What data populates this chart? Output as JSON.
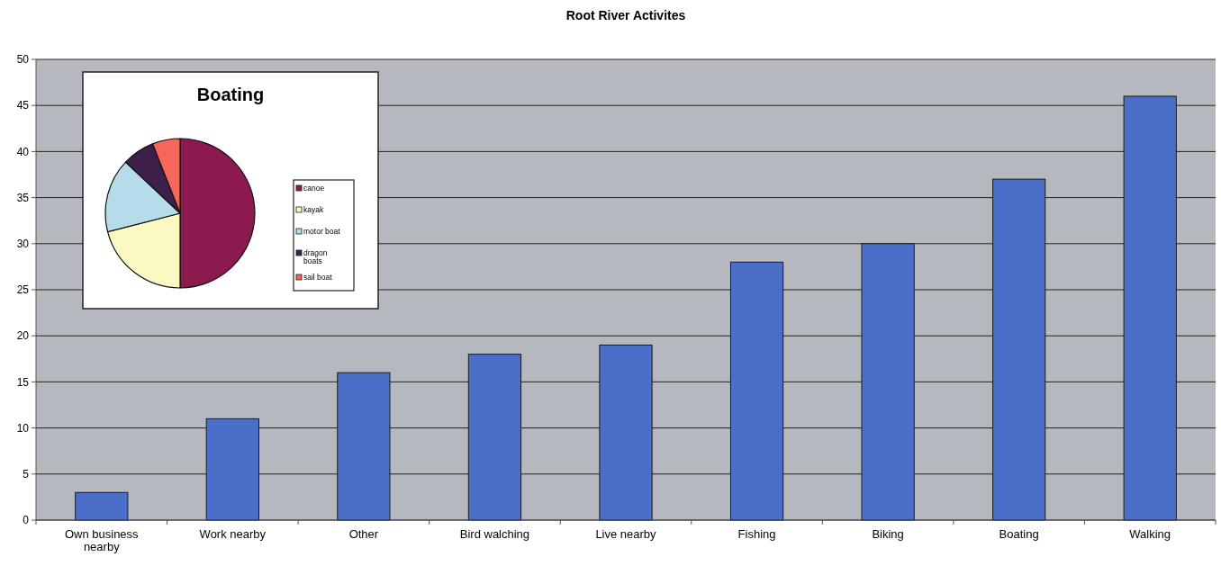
{
  "chart_data": [
    {
      "type": "bar",
      "title": "Root River Activites",
      "categories": [
        "Own business nearby",
        "Work nearby",
        "Other",
        "Bird walching",
        "Live nearby",
        "Fishing",
        "Biking",
        "Boating",
        "Walking"
      ],
      "values": [
        3,
        11,
        16,
        18,
        19,
        28,
        30,
        37,
        46
      ],
      "color": "#4b6fc9",
      "ylim": [
        0,
        50
      ],
      "yticks": [
        0,
        5,
        10,
        15,
        20,
        25,
        30,
        35,
        40,
        45,
        50
      ],
      "grid": "y"
    },
    {
      "type": "pie",
      "title": "Boating",
      "categories": [
        "canoe",
        "kayak",
        "motor boat",
        "dragon boats",
        "sail boat"
      ],
      "values": [
        50,
        21,
        16,
        7,
        6
      ],
      "colors": [
        "#8c1a4f",
        "#fbf8c4",
        "#b6dcea",
        "#3d1f4a",
        "#f4675a"
      ],
      "legend": "right"
    }
  ]
}
